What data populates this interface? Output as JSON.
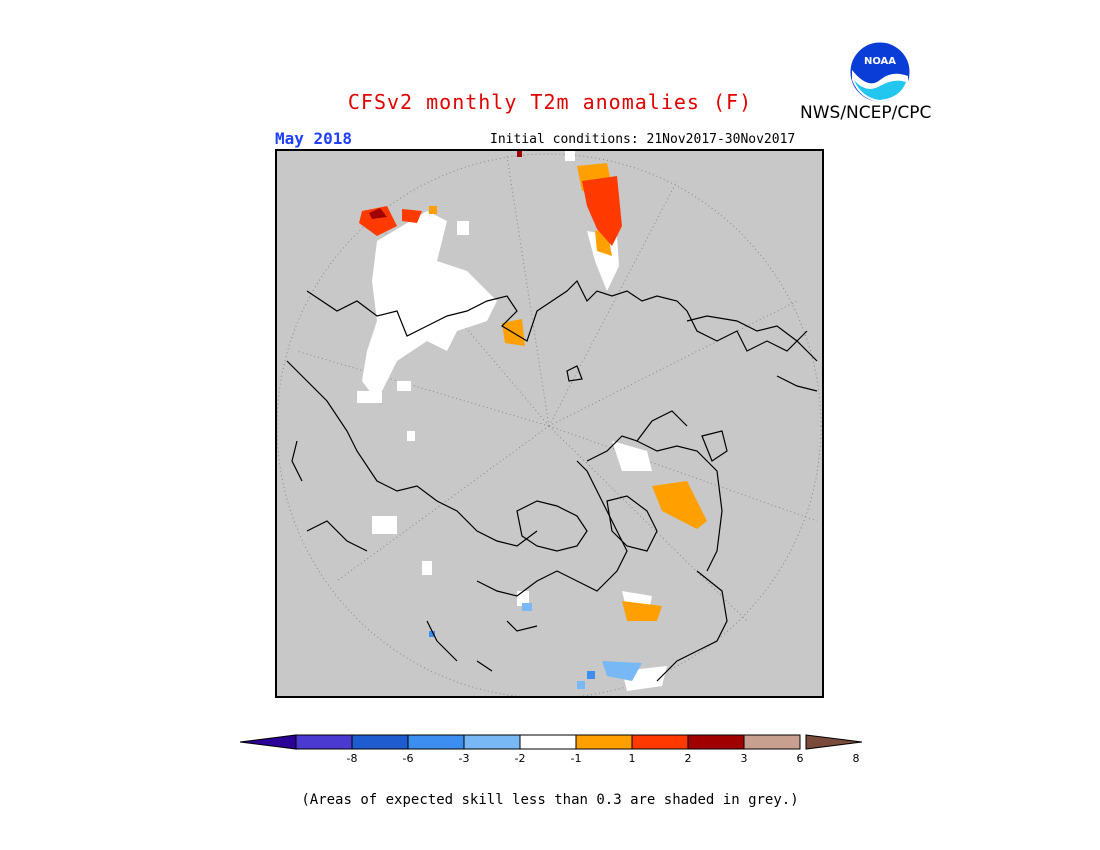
{
  "header": {
    "title": "CFSv2 monthly T2m anomalies (F)",
    "agency": "NWS/NCEP/CPC",
    "logo_text": "NOAA",
    "month": "May 2018",
    "initial_conditions": "Initial conditions: 21Nov2017-30Nov2017"
  },
  "colorbar": {
    "colors": [
      "#2a0096",
      "#4a3ad0",
      "#1e5cd0",
      "#3c8ef0",
      "#78b8f4",
      "#ffffff",
      "#ffa000",
      "#ff3a00",
      "#a00000",
      "#c8a090",
      "#7a4a3a"
    ],
    "ticks": [
      "-8",
      "-6",
      "-3",
      "-2",
      "-1",
      "1",
      "2",
      "3",
      "6",
      "8"
    ]
  },
  "legend_note": "(Areas of expected skill less than 0.3 are shaded in grey.)",
  "map": {
    "background": "#c8c8c8",
    "coastline_color": "#000000"
  }
}
